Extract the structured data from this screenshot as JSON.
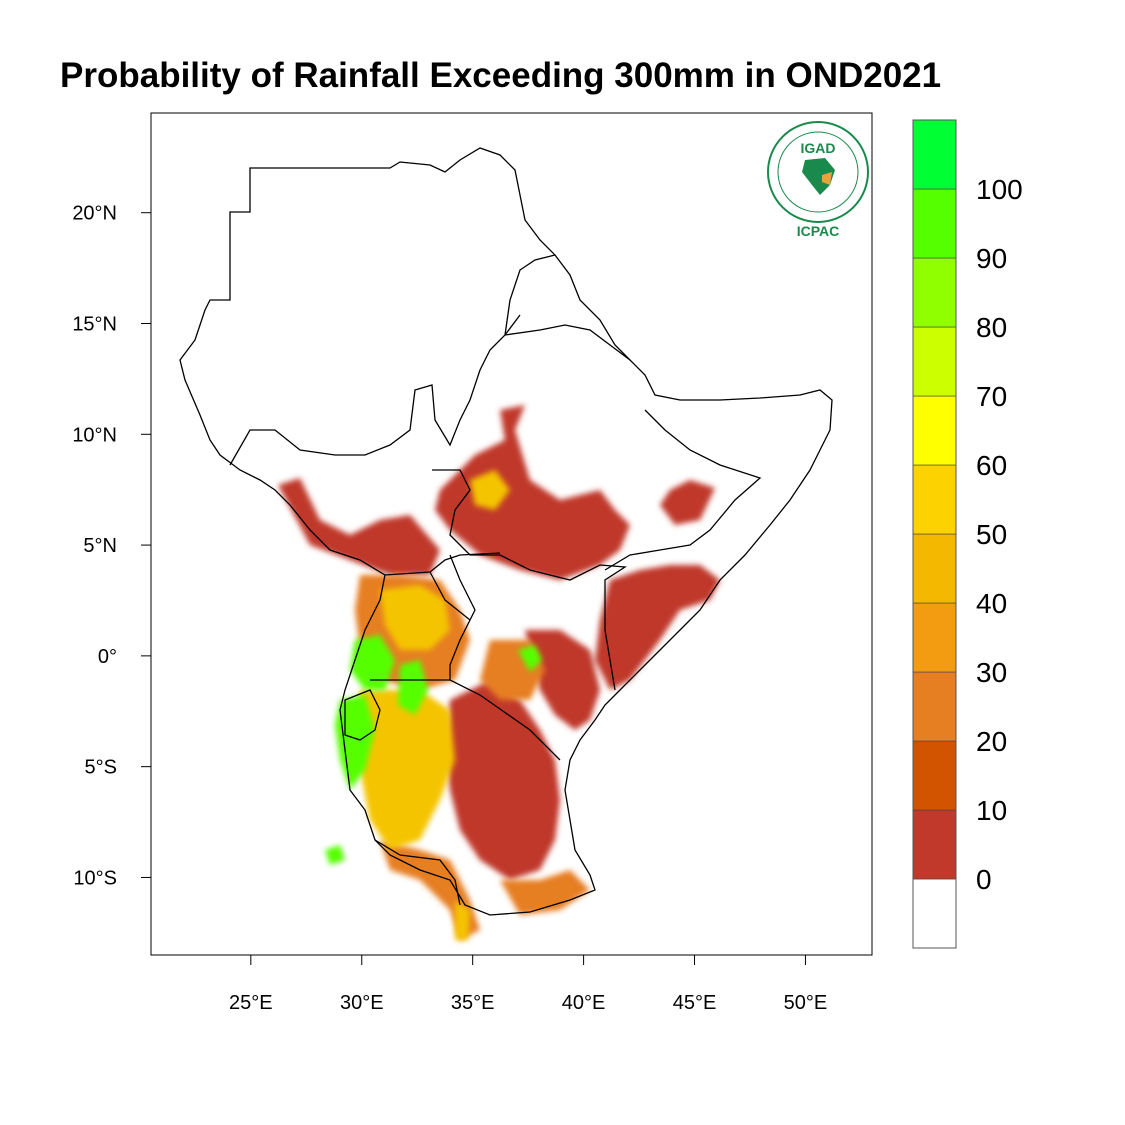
{
  "title": "Probability of Rainfall Exceeding 300mm in OND2021",
  "logo": {
    "top_text": "IGAD",
    "bottom_text": "ICPAC",
    "ring_color": "#1a8a4c",
    "accent_color": "#e8a33a"
  },
  "axes": {
    "lon_range": [
      20.5,
      53
    ],
    "lat_range": [
      -13.5,
      24.5
    ],
    "x_ticks": [
      {
        "value": 25,
        "label": "25°E"
      },
      {
        "value": 30,
        "label": "30°E"
      },
      {
        "value": 35,
        "label": "35°E"
      },
      {
        "value": 40,
        "label": "40°E"
      },
      {
        "value": 45,
        "label": "45°E"
      },
      {
        "value": 50,
        "label": "50°E"
      }
    ],
    "y_ticks": [
      {
        "value": 20,
        "label": "20°N"
      },
      {
        "value": 15,
        "label": "15°N"
      },
      {
        "value": 10,
        "label": "10°N"
      },
      {
        "value": 5,
        "label": "5°N"
      },
      {
        "value": 0,
        "label": "0°"
      },
      {
        "value": -5,
        "label": "5°S"
      },
      {
        "value": -10,
        "label": "10°S"
      }
    ]
  },
  "colorbar": {
    "bins": [
      {
        "color": "#ffffff"
      },
      {
        "color": "#c0392b"
      },
      {
        "color": "#d35400"
      },
      {
        "color": "#e67e22"
      },
      {
        "color": "#f39c12"
      },
      {
        "color": "#f5b800"
      },
      {
        "color": "#fcd200"
      },
      {
        "color": "#ffff00"
      },
      {
        "color": "#ccff00"
      },
      {
        "color": "#90ff00"
      },
      {
        "color": "#55ff00"
      },
      {
        "color": "#00ff33"
      }
    ],
    "labels": [
      "0",
      "10",
      "20",
      "30",
      "40",
      "50",
      "60",
      "70",
      "80",
      "90",
      "100"
    ]
  }
}
